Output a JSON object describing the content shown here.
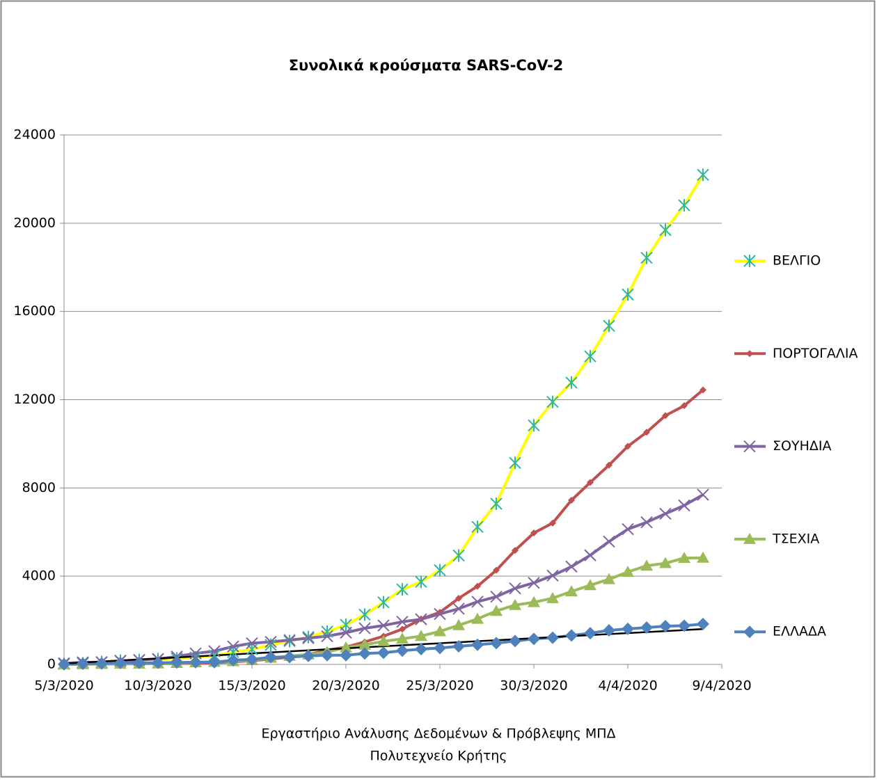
{
  "chart_data": {
    "type": "line",
    "title": "Συνολικά κρούσματα SARS-CoV-2",
    "footer": [
      "Εργαστήριο Ανάλυσης Δεδομένων & Πρόβλεψης ΜΠΔ",
      "Πολυτεχνείο Κρήτης"
    ],
    "x": [
      "5/3/2020",
      "6/3/2020",
      "7/3/2020",
      "8/3/2020",
      "9/3/2020",
      "10/3/2020",
      "11/3/2020",
      "12/3/2020",
      "13/3/2020",
      "14/3/2020",
      "15/3/2020",
      "16/3/2020",
      "17/3/2020",
      "18/3/2020",
      "19/3/2020",
      "20/3/2020",
      "21/3/2020",
      "22/3/2020",
      "23/3/2020",
      "24/3/2020",
      "25/3/2020",
      "26/3/2020",
      "27/3/2020",
      "28/3/2020",
      "29/3/2020",
      "30/3/2020",
      "31/3/2020",
      "1/4/2020",
      "2/4/2020",
      "3/4/2020",
      "4/4/2020",
      "5/4/2020",
      "6/4/2020",
      "7/4/2020",
      "8/4/2020"
    ],
    "xlim": [
      "5/3/2020",
      "9/4/2020"
    ],
    "xticks": [
      "5/3/2020",
      "10/3/2020",
      "15/3/2020",
      "20/3/2020",
      "25/3/2020",
      "30/3/2020",
      "4/4/2020",
      "9/4/2020"
    ],
    "ylim": [
      0,
      24000
    ],
    "yticks": [
      0,
      4000,
      8000,
      12000,
      16000,
      20000,
      24000
    ],
    "grid": true,
    "legend": "right",
    "series": [
      {
        "name": "ΒΕΛΓΙΟ",
        "color": "#ffff00",
        "marker": "asterisk",
        "marker_color": "#2fb5a6",
        "values": [
          23,
          50,
          109,
          169,
          200,
          239,
          267,
          314,
          399,
          559,
          689,
          886,
          1058,
          1243,
          1486,
          1795,
          2257,
          2815,
          3401,
          3743,
          4269,
          4937,
          6235,
          7284,
          9134,
          10836,
          11899,
          12775,
          13964,
          15348,
          16770,
          18431,
          19691,
          20814,
          22194
        ]
      },
      {
        "name": "ΠΟΡΤΟΓΑΛΙΑ",
        "color": "#c0504d",
        "marker": "diamond-small",
        "marker_color": "#c0504d",
        "values": [
          6,
          9,
          13,
          21,
          30,
          39,
          41,
          59,
          78,
          112,
          169,
          245,
          331,
          448,
          642,
          785,
          1020,
          1280,
          1600,
          2060,
          2362,
          2995,
          3544,
          4268,
          5170,
          5962,
          6408,
          7443,
          8251,
          9034,
          9886,
          10524,
          11278,
          11730,
          12442
        ]
      },
      {
        "name": "ΣΟΥΗΔΙΑ",
        "color": "#8064a2",
        "marker": "cross",
        "marker_color": "#8064a2",
        "values": [
          52,
          94,
          101,
          161,
          203,
          248,
          355,
          500,
          599,
          814,
          961,
          1022,
          1103,
          1190,
          1279,
          1439,
          1639,
          1763,
          1934,
          2046,
          2286,
          2526,
          2840,
          3069,
          3447,
          3700,
          4028,
          4435,
          4947,
          5568,
          6131,
          6443,
          6830,
          7206,
          7693
        ]
      },
      {
        "name": "ΤΣΕΧΙΑ",
        "color": "#9bbb59",
        "marker": "triangle",
        "marker_color": "#9bbb59",
        "values": [
          5,
          8,
          19,
          26,
          32,
          38,
          63,
          94,
          116,
          141,
          189,
          298,
          383,
          450,
          560,
          765,
          889,
          1047,
          1161,
          1287,
          1497,
          1775,
          2062,
          2422,
          2689,
          2817,
          3001,
          3308,
          3589,
          3858,
          4190,
          4472,
          4587,
          4822,
          4835
        ]
      },
      {
        "name": "ΕΛΛΑΔΑ",
        "color": "#4f81bd",
        "marker": "diamond",
        "marker_color": "#4f81bd",
        "values": [
          9,
          31,
          45,
          66,
          73,
          73,
          89,
          99,
          99,
          190,
          228,
          331,
          331,
          387,
          418,
          418,
          495,
          530,
          624,
          695,
          743,
          821,
          892,
          966,
          1061,
          1156,
          1212,
          1314,
          1415,
          1544,
          1613,
          1673,
          1735,
          1755,
          1832
        ]
      },
      {
        "color": "#000000",
        "marker": "none",
        "values": [
          40,
          86,
          132,
          178,
          224,
          270,
          316,
          362,
          408,
          454,
          500,
          546,
          592,
          638,
          684,
          730,
          776,
          822,
          868,
          914,
          960,
          1006,
          1052,
          1098,
          1144,
          1190,
          1236,
          1282,
          1328,
          1374,
          1420,
          1466,
          1512,
          1558,
          1604
        ]
      }
    ]
  }
}
